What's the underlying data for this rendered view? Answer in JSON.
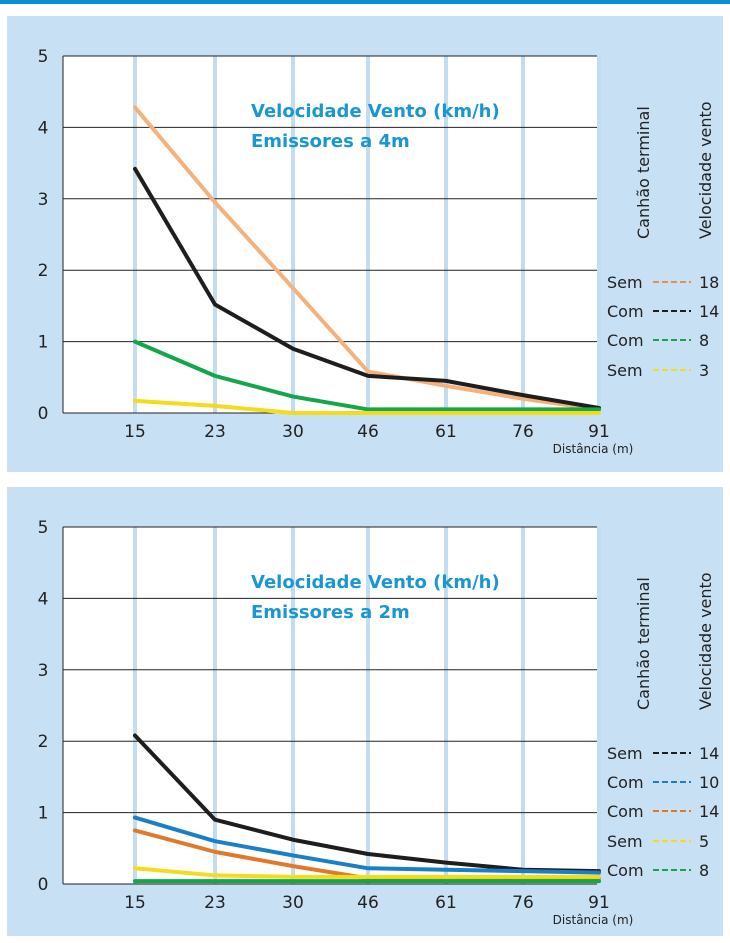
{
  "chart_data": [
    {
      "type": "line",
      "annotation_lines": [
        "Velocidade Vento (km/h)",
        "Emissores a 4m"
      ],
      "xlabel": "Distância (m)",
      "categories": [
        "15",
        "23",
        "30",
        "46",
        "61",
        "76",
        "91"
      ],
      "ylim": [
        0,
        5
      ],
      "yticks": [
        "0",
        "1",
        "2",
        "3",
        "4",
        "5"
      ],
      "grid": true,
      "legend_headers": [
        "Canhão terminal",
        "Velocidade vento"
      ],
      "legend_placement": "right",
      "series": [
        {
          "color": "#e8904a",
          "legend_canhao": "Sem",
          "legend_vel": "18",
          "line_color": "#f6b07a",
          "points": [
            [
              15,
              4.28
            ],
            [
              23,
              2.95
            ],
            [
              30,
              1.75
            ],
            [
              46,
              0.58
            ],
            [
              61,
              0.38
            ],
            [
              76,
              0.2
            ],
            [
              91,
              0.05
            ]
          ]
        },
        {
          "color": "#1e1e1e",
          "legend_canhao": "Com",
          "legend_vel": "14",
          "line_color": "#1e1e1e",
          "points": [
            [
              15,
              3.42
            ],
            [
              23,
              1.52
            ],
            [
              30,
              0.9
            ],
            [
              46,
              0.52
            ],
            [
              61,
              0.45
            ],
            [
              76,
              0.25
            ],
            [
              91,
              0.07
            ]
          ]
        },
        {
          "color": "#14a64a",
          "legend_canhao": "Com",
          "legend_vel": "8",
          "line_color": "#14a64a",
          "points": [
            [
              15,
              1.0
            ],
            [
              23,
              0.52
            ],
            [
              30,
              0.23
            ],
            [
              46,
              0.05
            ],
            [
              61,
              0.05
            ],
            [
              76,
              0.05
            ],
            [
              91,
              0.05
            ]
          ]
        },
        {
          "color": "#f3dc1a",
          "legend_canhao": "Sem",
          "legend_vel": "3",
          "line_color": "#f3dc1a",
          "points": [
            [
              15,
              0.17
            ],
            [
              23,
              0.1
            ],
            [
              30,
              0.0
            ],
            [
              46,
              0.0
            ],
            [
              61,
              0.0
            ],
            [
              76,
              0.0
            ],
            [
              91,
              0.0
            ]
          ]
        }
      ]
    },
    {
      "type": "line",
      "annotation_lines": [
        "Velocidade Vento (km/h)",
        "Emissores a 2m"
      ],
      "xlabel": "Distância (m)",
      "categories": [
        "15",
        "23",
        "30",
        "46",
        "61",
        "76",
        "91"
      ],
      "ylim": [
        0,
        5
      ],
      "yticks": [
        "0",
        "1",
        "2",
        "3",
        "4",
        "5"
      ],
      "grid": true,
      "legend_headers": [
        "Canhão terminal",
        "Velocidade vento"
      ],
      "legend_placement": "right",
      "series": [
        {
          "color": "#1e1e1e",
          "legend_canhao": "Sem",
          "legend_vel": "14",
          "line_color": "#1e1e1e",
          "points": [
            [
              15,
              2.08
            ],
            [
              23,
              0.9
            ],
            [
              30,
              0.62
            ],
            [
              46,
              0.42
            ],
            [
              61,
              0.3
            ],
            [
              76,
              0.2
            ],
            [
              91,
              0.18
            ]
          ]
        },
        {
          "color": "#1a7fc8",
          "legend_canhao": "Com",
          "legend_vel": "10",
          "line_color": "#1a7fc8",
          "points": [
            [
              15,
              0.93
            ],
            [
              23,
              0.6
            ],
            [
              30,
              0.4
            ],
            [
              46,
              0.22
            ],
            [
              61,
              0.2
            ],
            [
              76,
              0.18
            ],
            [
              91,
              0.16
            ]
          ]
        },
        {
          "color": "#e07a2a",
          "legend_canhao": "Com",
          "legend_vel": "14",
          "line_color": "#e07a2a",
          "points": [
            [
              15,
              0.75
            ],
            [
              23,
              0.45
            ],
            [
              30,
              0.25
            ],
            [
              46,
              0.08
            ],
            [
              61,
              0.08
            ],
            [
              76,
              0.08
            ],
            [
              91,
              0.08
            ]
          ]
        },
        {
          "color": "#f3dc1a",
          "legend_canhao": "Sem",
          "legend_vel": "5",
          "line_color": "#f3dc1a",
          "points": [
            [
              15,
              0.22
            ],
            [
              23,
              0.12
            ],
            [
              30,
              0.1
            ],
            [
              46,
              0.1
            ],
            [
              61,
              0.1
            ],
            [
              76,
              0.1
            ],
            [
              91,
              0.1
            ]
          ]
        },
        {
          "color": "#14a64a",
          "legend_canhao": "Com",
          "legend_vel": "8",
          "line_color": "#14a64a",
          "points": [
            [
              15,
              0.04
            ],
            [
              23,
              0.04
            ],
            [
              30,
              0.04
            ],
            [
              46,
              0.04
            ],
            [
              61,
              0.04
            ],
            [
              76,
              0.04
            ],
            [
              91,
              0.04
            ]
          ]
        }
      ]
    }
  ]
}
